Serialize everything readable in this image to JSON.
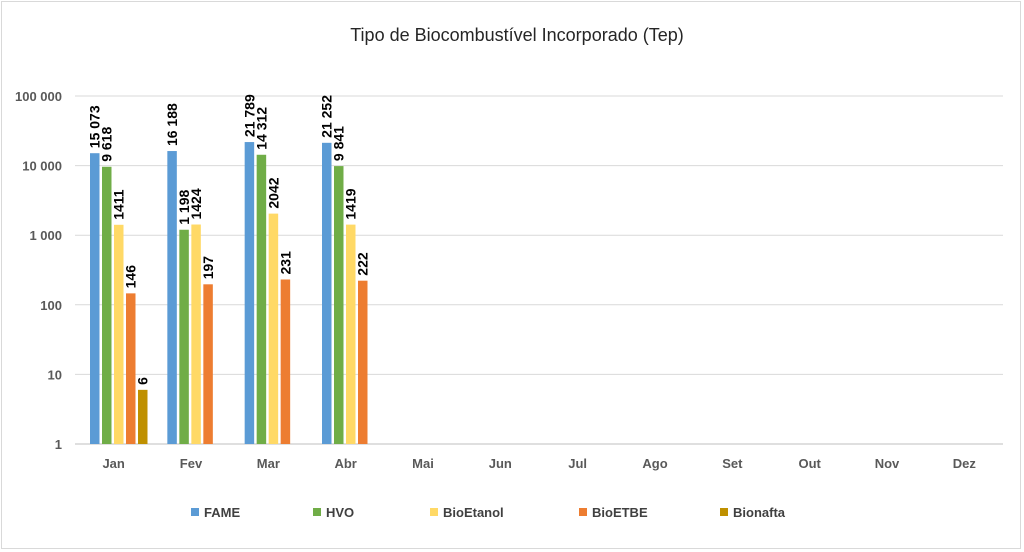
{
  "chart_data": {
    "type": "bar",
    "title": "Tipo de Biocombustível Incorporado (Tep)",
    "xlabel": "",
    "ylabel": "",
    "yscale": "log",
    "ylim": [
      1,
      100000
    ],
    "yticks": [
      1,
      10,
      100,
      1000,
      10000,
      100000
    ],
    "ytick_labels": [
      "1",
      "10",
      "100",
      "1 000",
      "10 000",
      "100 000"
    ],
    "grid": true,
    "legend_position": "bottom",
    "categories": [
      "Jan",
      "Fev",
      "Mar",
      "Abr",
      "Mai",
      "Jun",
      "Jul",
      "Ago",
      "Set",
      "Out",
      "Nov",
      "Dez"
    ],
    "series": [
      {
        "name": "FAME",
        "color": "#5b9bd5",
        "values": [
          15073,
          16188,
          21789,
          21252,
          null,
          null,
          null,
          null,
          null,
          null,
          null,
          null
        ],
        "labels": [
          "15 073",
          "16 188",
          "21 789",
          "21 252",
          "",
          "",
          "",
          "",
          "",
          "",
          "",
          ""
        ]
      },
      {
        "name": "HVO",
        "color": "#70ad47",
        "values": [
          9618,
          1198,
          14312,
          9841,
          null,
          null,
          null,
          null,
          null,
          null,
          null,
          null
        ],
        "labels": [
          "9 618",
          "1 198",
          "14 312",
          "9 841",
          "",
          "",
          "",
          "",
          "",
          "",
          "",
          ""
        ]
      },
      {
        "name": "BioEtanol",
        "color": "#ffd966",
        "values": [
          1411,
          1424,
          2042,
          1419,
          null,
          null,
          null,
          null,
          null,
          null,
          null,
          null
        ],
        "labels": [
          "1411",
          "1424",
          "2042",
          "1419",
          "",
          "",
          "",
          "",
          "",
          "",
          "",
          ""
        ]
      },
      {
        "name": "BioETBE",
        "color": "#ed7d31",
        "values": [
          146,
          197,
          231,
          222,
          null,
          null,
          null,
          null,
          null,
          null,
          null,
          null
        ],
        "labels": [
          "146",
          "197",
          "231",
          "222",
          "",
          "",
          "",
          "",
          "",
          "",
          "",
          ""
        ]
      },
      {
        "name": "Bionafta",
        "color": "#bf9000",
        "values": [
          6,
          null,
          null,
          null,
          null,
          null,
          null,
          null,
          null,
          null,
          null,
          null
        ],
        "labels": [
          "6",
          "",
          "",
          "",
          "",
          "",
          "",
          "",
          "",
          "",
          "",
          ""
        ]
      }
    ]
  }
}
